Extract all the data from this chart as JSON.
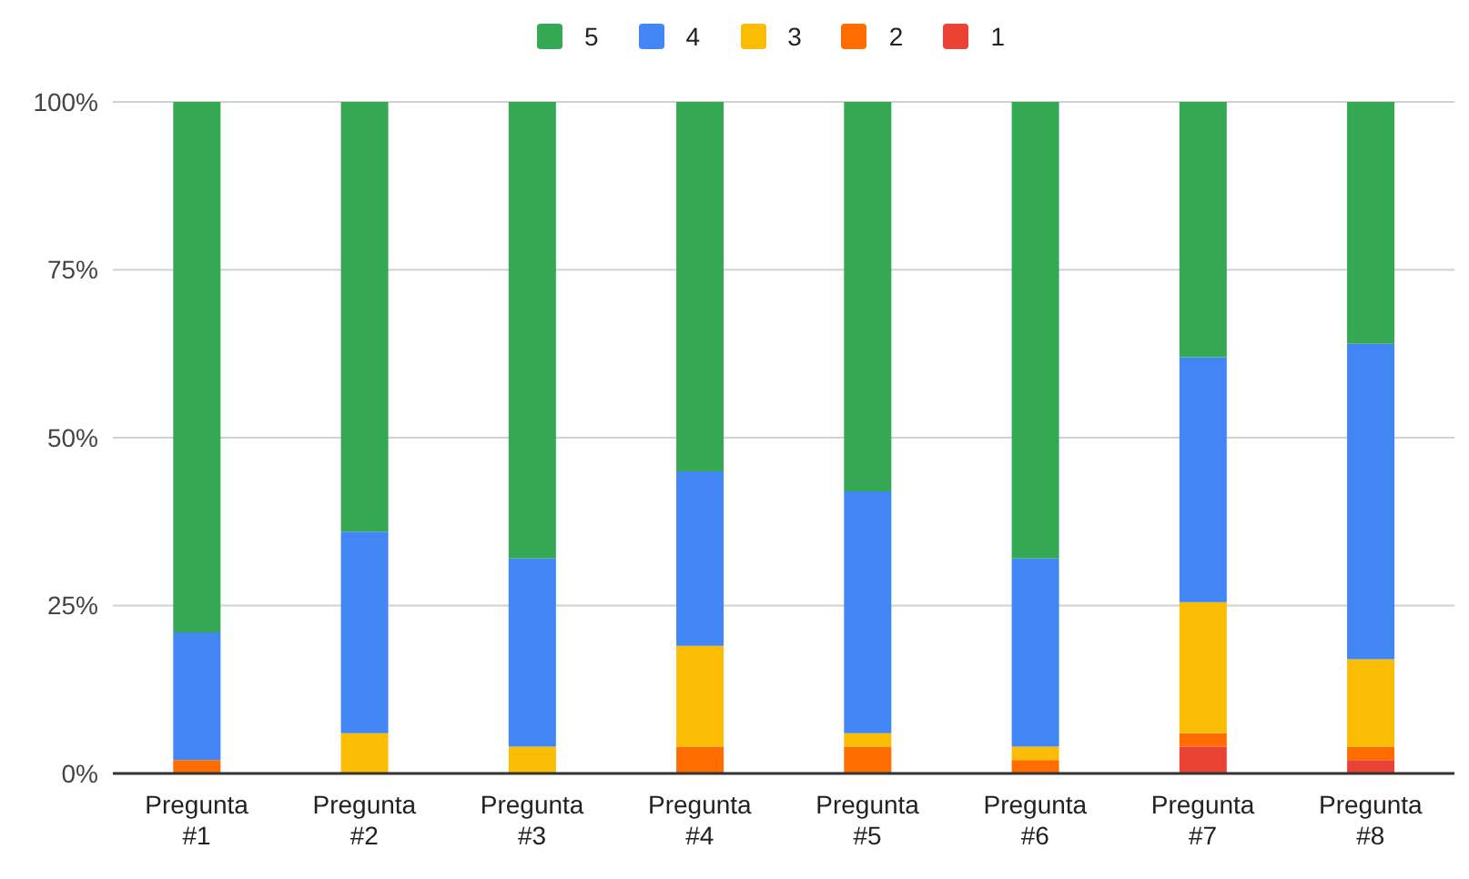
{
  "chart_data": {
    "type": "bar",
    "stacked": true,
    "categories": [
      "Pregunta #1",
      "Pregunta #2",
      "Pregunta #3",
      "Pregunta #4",
      "Pregunta #5",
      "Pregunta #6",
      "Pregunta #7",
      "Pregunta #8"
    ],
    "series": [
      {
        "name": "1",
        "color": "#ea4335",
        "values": [
          0,
          0,
          0,
          0,
          0,
          0,
          4,
          2
        ]
      },
      {
        "name": "2",
        "color": "#ff6d01",
        "values": [
          2,
          0,
          0,
          4,
          4,
          2,
          2,
          2
        ]
      },
      {
        "name": "3",
        "color": "#fbbc04",
        "values": [
          0,
          6,
          4,
          15,
          2,
          2,
          19.5,
          13
        ]
      },
      {
        "name": "4",
        "color": "#4285f4",
        "values": [
          19,
          30,
          28,
          26,
          36,
          28,
          36.5,
          47
        ]
      },
      {
        "name": "5",
        "color": "#34a853",
        "values": [
          79,
          64,
          68,
          55,
          58,
          68,
          38,
          36
        ]
      }
    ],
    "ylim": [
      0,
      100
    ],
    "yticks": [
      {
        "value": 0,
        "label": "0%"
      },
      {
        "value": 25,
        "label": "25%"
      },
      {
        "value": 50,
        "label": "50%"
      },
      {
        "value": 75,
        "label": "75%"
      },
      {
        "value": 100,
        "label": "100%"
      }
    ],
    "grid": "y",
    "legend": "top"
  }
}
